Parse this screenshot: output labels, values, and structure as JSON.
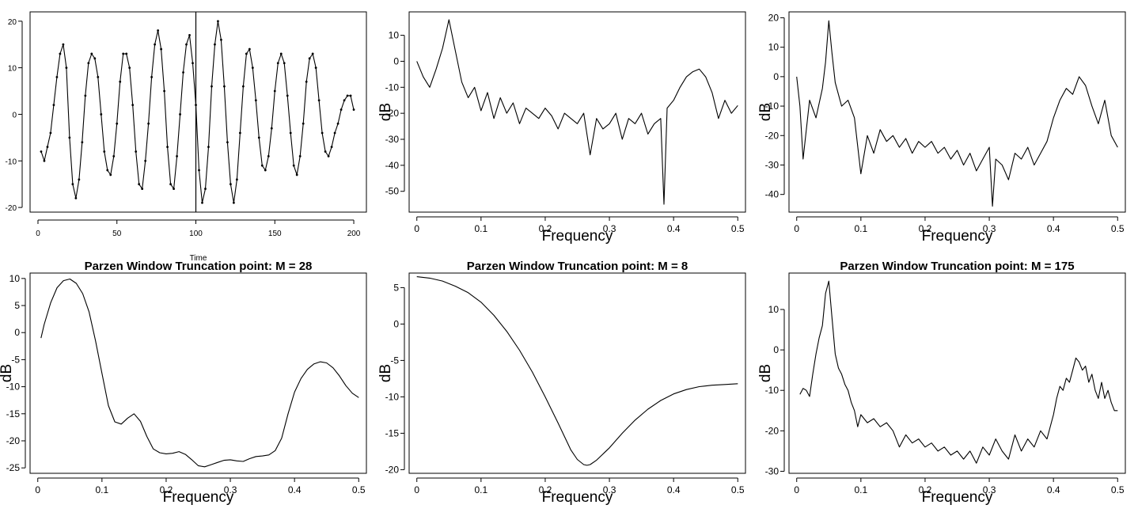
{
  "chart_data": [
    {
      "type": "line",
      "panel": "time-series",
      "title": "",
      "xlabel": "Time",
      "ylabel": "",
      "xlim": [
        -5,
        208
      ],
      "ylim": [
        -21,
        22
      ],
      "xticks": [
        0,
        50,
        100,
        150,
        200
      ],
      "yticks": [
        -20,
        -10,
        0,
        10,
        20
      ],
      "vline_x": 100,
      "markers": true,
      "grid": false,
      "x": [
        2,
        4,
        6,
        8,
        10,
        12,
        14,
        16,
        18,
        20,
        22,
        24,
        26,
        28,
        30,
        32,
        34,
        36,
        38,
        40,
        42,
        44,
        46,
        48,
        50,
        52,
        54,
        56,
        58,
        60,
        62,
        64,
        66,
        68,
        70,
        72,
        74,
        76,
        78,
        80,
        82,
        84,
        86,
        88,
        90,
        92,
        94,
        96,
        98,
        100,
        102,
        104,
        106,
        108,
        110,
        112,
        114,
        116,
        118,
        120,
        122,
        124,
        126,
        128,
        130,
        132,
        134,
        136,
        138,
        140,
        142,
        144,
        146,
        148,
        150,
        152,
        154,
        156,
        158,
        160,
        162,
        164,
        166,
        168,
        170,
        172,
        174,
        176,
        178,
        180,
        182,
        184,
        186,
        188,
        190,
        192,
        194,
        196,
        198,
        200
      ],
      "y": [
        -8,
        -10,
        -7,
        -4,
        2,
        8,
        13,
        15,
        10,
        -5,
        -15,
        -18,
        -14,
        -6,
        4,
        11,
        13,
        12,
        8,
        0,
        -8,
        -12,
        -13,
        -9,
        -2,
        7,
        13,
        13,
        10,
        2,
        -8,
        -15,
        -16,
        -10,
        -2,
        8,
        15,
        18,
        14,
        5,
        -7,
        -15,
        -16,
        -9,
        0,
        9,
        15,
        17,
        11,
        2,
        -12,
        -19,
        -16,
        -7,
        6,
        15,
        20,
        16,
        6,
        -6,
        -15,
        -19,
        -14,
        -4,
        6,
        13,
        14,
        10,
        3,
        -5,
        -11,
        -12,
        -9,
        -3,
        5,
        11,
        13,
        11,
        4,
        -4,
        -11,
        -13,
        -9,
        -2,
        7,
        12,
        13,
        10,
        3,
        -4,
        -8,
        -9,
        -7,
        -4,
        -2,
        1,
        3,
        4,
        4,
        1
      ]
    },
    {
      "type": "line",
      "panel": "raw-periodogram-1",
      "title": "",
      "xlabel": "Frequency",
      "ylabel": "dB",
      "xlim": [
        -0.012,
        0.512
      ],
      "ylim": [
        -58,
        19
      ],
      "xticks": [
        0.0,
        0.1,
        0.2,
        0.3,
        0.4,
        0.5
      ],
      "yticks": [
        -50,
        -40,
        -30,
        -20,
        -10,
        0,
        10
      ],
      "grid": false,
      "x": [
        0.0,
        0.01,
        0.02,
        0.03,
        0.04,
        0.05,
        0.06,
        0.07,
        0.08,
        0.09,
        0.1,
        0.11,
        0.12,
        0.13,
        0.14,
        0.15,
        0.16,
        0.17,
        0.18,
        0.19,
        0.2,
        0.21,
        0.22,
        0.23,
        0.24,
        0.25,
        0.26,
        0.27,
        0.28,
        0.29,
        0.3,
        0.31,
        0.32,
        0.33,
        0.34,
        0.35,
        0.36,
        0.37,
        0.38,
        0.385,
        0.39,
        0.4,
        0.41,
        0.42,
        0.43,
        0.44,
        0.45,
        0.46,
        0.47,
        0.48,
        0.49,
        0.5
      ],
      "y": [
        0,
        -6,
        -10,
        -3,
        5,
        16,
        4,
        -8,
        -14,
        -10,
        -19,
        -12,
        -22,
        -14,
        -20,
        -16,
        -24,
        -18,
        -20,
        -22,
        -18,
        -21,
        -26,
        -20,
        -22,
        -24,
        -20,
        -36,
        -22,
        -26,
        -24,
        -20,
        -30,
        -22,
        -24,
        -20,
        -28,
        -24,
        -22,
        -55,
        -18,
        -15,
        -10,
        -6,
        -4,
        -3,
        -6,
        -12,
        -22,
        -15,
        -20,
        -17
      ]
    },
    {
      "type": "line",
      "panel": "raw-periodogram-2",
      "title": "",
      "xlabel": "Frequency",
      "ylabel": "dB",
      "xlim": [
        -0.012,
        0.512
      ],
      "ylim": [
        -46,
        22
      ],
      "xticks": [
        0.0,
        0.1,
        0.2,
        0.3,
        0.4,
        0.5
      ],
      "yticks": [
        -40,
        -30,
        -20,
        -10,
        0,
        10,
        20
      ],
      "grid": false,
      "x": [
        0.0,
        0.005,
        0.01,
        0.02,
        0.03,
        0.04,
        0.045,
        0.05,
        0.055,
        0.06,
        0.07,
        0.08,
        0.09,
        0.1,
        0.11,
        0.12,
        0.13,
        0.14,
        0.15,
        0.16,
        0.17,
        0.18,
        0.19,
        0.2,
        0.21,
        0.22,
        0.23,
        0.24,
        0.25,
        0.26,
        0.27,
        0.28,
        0.29,
        0.3,
        0.305,
        0.31,
        0.32,
        0.33,
        0.34,
        0.35,
        0.36,
        0.37,
        0.38,
        0.39,
        0.4,
        0.41,
        0.42,
        0.43,
        0.44,
        0.45,
        0.46,
        0.47,
        0.48,
        0.49,
        0.5
      ],
      "y": [
        0,
        -10,
        -28,
        -8,
        -14,
        -4,
        5,
        19,
        8,
        -2,
        -10,
        -8,
        -14,
        -33,
        -20,
        -26,
        -18,
        -22,
        -20,
        -24,
        -21,
        -26,
        -22,
        -24,
        -22,
        -26,
        -24,
        -28,
        -25,
        -30,
        -26,
        -32,
        -28,
        -24,
        -44,
        -28,
        -30,
        -35,
        -26,
        -28,
        -24,
        -30,
        -26,
        -22,
        -14,
        -8,
        -4,
        -6,
        0,
        -3,
        -10,
        -16,
        -8,
        -20,
        -24
      ]
    },
    {
      "type": "line",
      "panel": "parzen-m28",
      "title": "Parzen Window Truncation point: M = 28",
      "xlabel": "Frequency",
      "ylabel": "dB",
      "xlim": [
        -0.012,
        0.512
      ],
      "ylim": [
        -26,
        11
      ],
      "xticks": [
        0.0,
        0.1,
        0.2,
        0.3,
        0.4,
        0.5
      ],
      "yticks": [
        -25,
        -20,
        -15,
        -10,
        -5,
        0,
        5,
        10
      ],
      "grid": false,
      "x": [
        0.005,
        0.01,
        0.02,
        0.03,
        0.04,
        0.05,
        0.06,
        0.07,
        0.08,
        0.09,
        0.1,
        0.11,
        0.12,
        0.13,
        0.14,
        0.15,
        0.16,
        0.17,
        0.18,
        0.19,
        0.2,
        0.21,
        0.22,
        0.23,
        0.24,
        0.25,
        0.26,
        0.27,
        0.28,
        0.29,
        0.3,
        0.31,
        0.32,
        0.33,
        0.34,
        0.35,
        0.36,
        0.37,
        0.38,
        0.39,
        0.4,
        0.41,
        0.42,
        0.43,
        0.44,
        0.45,
        0.46,
        0.47,
        0.48,
        0.49,
        0.5
      ],
      "y": [
        -1,
        1.5,
        5.5,
        8.3,
        9.6,
        9.9,
        9.1,
        7.2,
        3.8,
        -1.5,
        -7.5,
        -13.5,
        -16.5,
        -16.9,
        -15.8,
        -15,
        -16.4,
        -19.2,
        -21.5,
        -22.2,
        -22.4,
        -22.3,
        -22,
        -22.5,
        -23.5,
        -24.6,
        -24.8,
        -24.4,
        -24,
        -23.6,
        -23.5,
        -23.7,
        -23.8,
        -23.3,
        -22.9,
        -22.8,
        -22.6,
        -21.8,
        -19.5,
        -15,
        -11,
        -8.5,
        -6.8,
        -5.8,
        -5.4,
        -5.6,
        -6.5,
        -8,
        -9.8,
        -11.2,
        -12
      ]
    },
    {
      "type": "line",
      "panel": "parzen-m8",
      "title": "Parzen Window Truncation point: M = 8",
      "xlabel": "Frequency",
      "ylabel": "dB",
      "xlim": [
        -0.012,
        0.512
      ],
      "ylim": [
        -20.5,
        7
      ],
      "xticks": [
        0.0,
        0.1,
        0.2,
        0.3,
        0.4,
        0.5
      ],
      "yticks": [
        -20,
        -15,
        -10,
        -5,
        0,
        5
      ],
      "grid": false,
      "x": [
        0.0,
        0.02,
        0.04,
        0.06,
        0.08,
        0.1,
        0.12,
        0.14,
        0.16,
        0.18,
        0.2,
        0.22,
        0.24,
        0.25,
        0.26,
        0.265,
        0.27,
        0.28,
        0.3,
        0.32,
        0.34,
        0.36,
        0.38,
        0.4,
        0.42,
        0.44,
        0.46,
        0.48,
        0.5
      ],
      "y": [
        6.5,
        6.3,
        5.9,
        5.2,
        4.3,
        3.0,
        1.2,
        -1.0,
        -3.6,
        -6.6,
        -10.0,
        -13.6,
        -17.3,
        -18.6,
        -19.3,
        -19.4,
        -19.3,
        -18.7,
        -17.0,
        -15.0,
        -13.2,
        -11.7,
        -10.5,
        -9.6,
        -9.0,
        -8.6,
        -8.4,
        -8.3,
        -8.2
      ]
    },
    {
      "type": "line",
      "panel": "parzen-m175",
      "title": "Parzen Window Truncation point: M = 175",
      "xlabel": "Frequency",
      "ylabel": "dB",
      "xlim": [
        -0.012,
        0.512
      ],
      "ylim": [
        -30.5,
        19
      ],
      "xticks": [
        0.0,
        0.1,
        0.2,
        0.3,
        0.4,
        0.5
      ],
      "yticks": [
        -30,
        -20,
        -10,
        0,
        10
      ],
      "grid": false,
      "x": [
        0.005,
        0.01,
        0.015,
        0.02,
        0.025,
        0.03,
        0.035,
        0.04,
        0.045,
        0.05,
        0.055,
        0.06,
        0.065,
        0.07,
        0.075,
        0.08,
        0.085,
        0.09,
        0.095,
        0.1,
        0.11,
        0.12,
        0.13,
        0.14,
        0.15,
        0.16,
        0.17,
        0.18,
        0.19,
        0.2,
        0.21,
        0.22,
        0.23,
        0.24,
        0.25,
        0.26,
        0.27,
        0.28,
        0.29,
        0.3,
        0.31,
        0.32,
        0.33,
        0.34,
        0.35,
        0.36,
        0.37,
        0.38,
        0.39,
        0.4,
        0.405,
        0.41,
        0.415,
        0.42,
        0.425,
        0.43,
        0.435,
        0.44,
        0.445,
        0.45,
        0.455,
        0.46,
        0.465,
        0.47,
        0.475,
        0.48,
        0.485,
        0.49,
        0.495,
        0.5
      ],
      "y": [
        -11,
        -9.5,
        -10,
        -11.5,
        -6,
        -1,
        3,
        6,
        14,
        17,
        8,
        -1,
        -4.5,
        -6,
        -8.5,
        -10,
        -13,
        -15,
        -19,
        -16,
        -18,
        -17,
        -19,
        -18,
        -20,
        -24,
        -21,
        -23,
        -22,
        -24,
        -23,
        -25,
        -24,
        -26,
        -25,
        -27,
        -25,
        -28,
        -24,
        -26,
        -22,
        -25,
        -27,
        -21,
        -25,
        -22,
        -24,
        -20,
        -22,
        -16,
        -12,
        -9,
        -10,
        -7,
        -8,
        -5,
        -2,
        -3,
        -5,
        -4,
        -8,
        -6,
        -10,
        -12,
        -8,
        -12,
        -10,
        -13,
        -15,
        -15
      ]
    }
  ]
}
